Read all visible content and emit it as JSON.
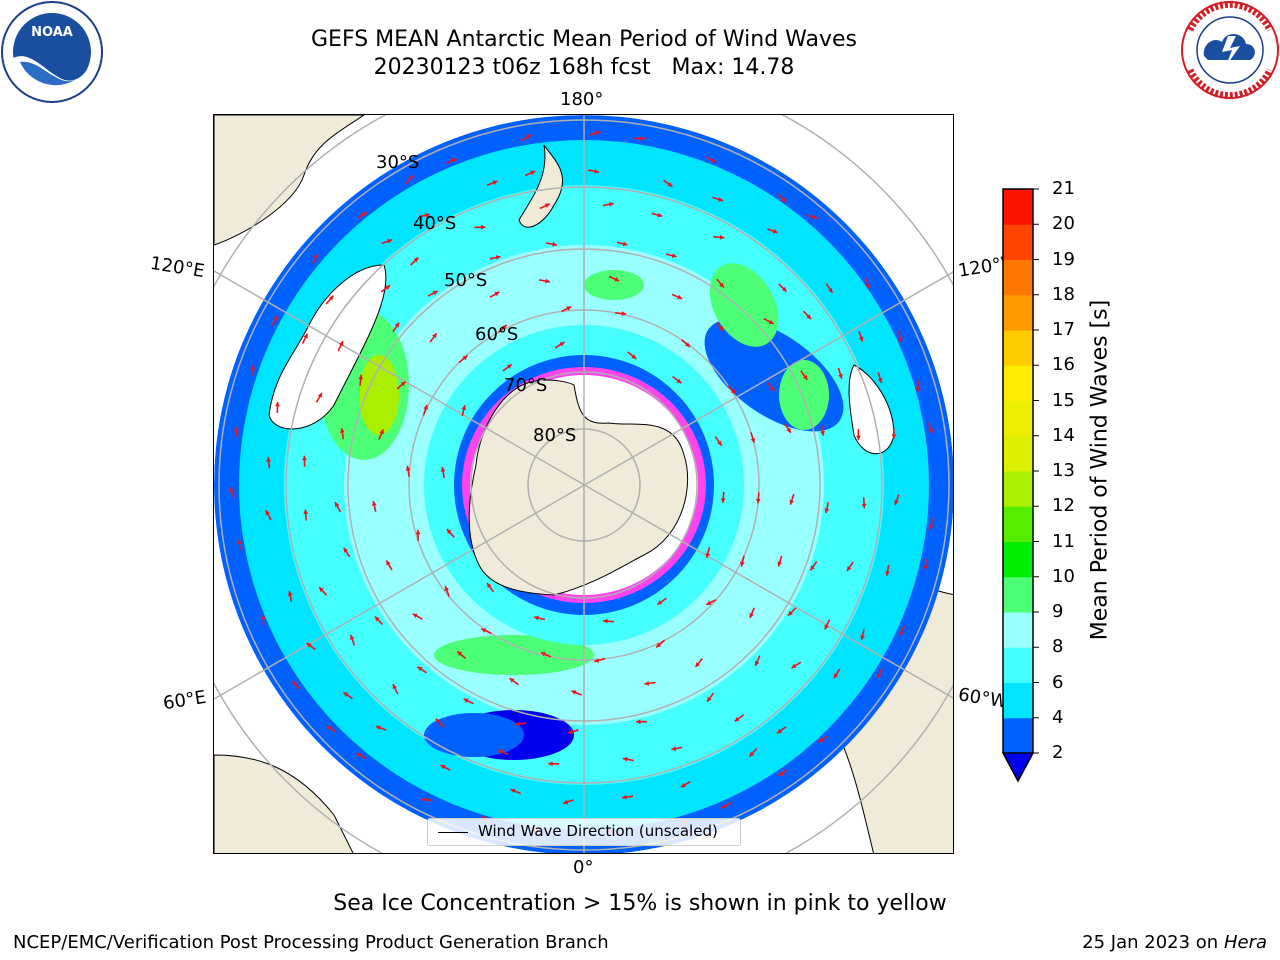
{
  "title": {
    "line1": "GEFS MEAN Antarctic Mean Period of Wind Waves",
    "line2": "20230123 t06z 168h fcst   Max: 14.78"
  },
  "logos": {
    "left_text": "NOAA",
    "left_ring_text": "NATIONAL OCEANIC AND ATMOSPHERIC ADMINISTRATION · U.S. DEPARTMENT OF COMMERCE",
    "right_ring_text": "NATIONAL WEATHER SERVICE"
  },
  "map": {
    "longitude_labels": {
      "top": "180°",
      "upper_left": "120°E",
      "upper_right": "120°W",
      "lower_left": "60°E",
      "lower_right": "60°W",
      "bottom": "0°"
    },
    "latitude_labels": [
      "30°S",
      "40°S",
      "50°S",
      "60°S",
      "70°S",
      "80°S"
    ],
    "legend_label": "Wind Wave Direction (unscaled)",
    "land_color": "#efebd8",
    "arrow_color": "#e8141c"
  },
  "colorbar": {
    "label": "Mean Period of Wind Waves [s]",
    "ticks": [
      "2",
      "4",
      "6",
      "8",
      "9",
      "10",
      "11",
      "12",
      "13",
      "14",
      "15",
      "16",
      "17",
      "18",
      "19",
      "20",
      "21"
    ],
    "colors": [
      "#0061ff",
      "#00e5ff",
      "#45ffff",
      "#99ffff",
      "#4dff77",
      "#00ee00",
      "#55ee00",
      "#aaee00",
      "#ddee00",
      "#eeee00",
      "#ffee00",
      "#ffcc00",
      "#ff9900",
      "#ff7700",
      "#ff4400",
      "#ff1100"
    ],
    "extend_color": "#0000ee"
  },
  "footer": {
    "note": "Sea Ice Concentration > 15% is shown in pink to yellow",
    "left": "NCEP/EMC/Verification Post Processing Product Generation Branch",
    "right_prefix": "25 Jan 2023 on ",
    "right_machine": "Hera"
  }
}
